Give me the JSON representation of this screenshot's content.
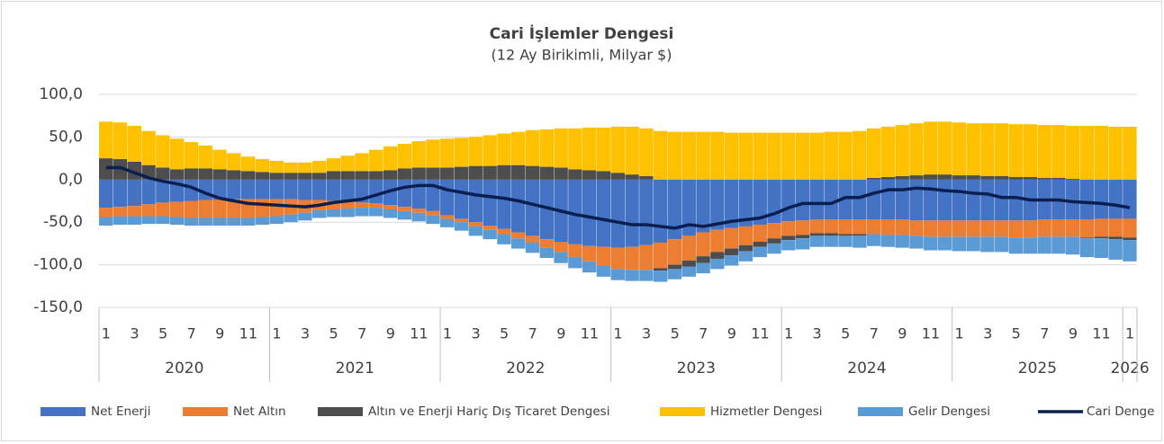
{
  "chart_data": {
    "type": "bar",
    "title": "Cari İşlemler Dengesi",
    "subtitle": "(12 Ay Birikimli, Milyar $)",
    "categories": [
      "1",
      null,
      "3",
      null,
      "5",
      null,
      "7",
      null,
      "9",
      null,
      "11",
      null,
      "1",
      null,
      "3",
      null,
      "5",
      null,
      "7",
      null,
      "9",
      null,
      "11",
      null,
      "1",
      null,
      "3",
      null,
      "5",
      null,
      "7",
      null,
      "9",
      null,
      "11",
      null,
      "1",
      null,
      "3",
      null,
      "5",
      null,
      "7",
      null,
      "9",
      null,
      "11",
      null,
      "1",
      null,
      "3",
      null,
      "5",
      null,
      "7",
      null,
      "9",
      null,
      "11",
      null,
      "1",
      null,
      "3",
      null,
      "5",
      null,
      "7",
      null,
      "9",
      null,
      "11",
      null,
      "1"
    ],
    "years": [
      "2020",
      "2021",
      "2022",
      "2023",
      "2024",
      "2025",
      "2026"
    ],
    "ylim": [
      -150,
      100
    ],
    "yticks": [
      {
        "value": -150,
        "label": "-150,0"
      },
      {
        "value": -100,
        "label": "-100,0"
      },
      {
        "value": -50,
        "label": "-50,0"
      },
      {
        "value": 0,
        "label": "0,0"
      },
      {
        "value": 50,
        "label": "50,0"
      },
      {
        "value": 100,
        "label": "100,0"
      }
    ],
    "grid": true,
    "legend": "bottom",
    "series": [
      {
        "name": "Net Enerji",
        "color": "#4472c4",
        "values": [
          -33,
          -32,
          -31,
          -29,
          -27,
          -26,
          -25,
          -24,
          -24,
          -23,
          -23,
          -23,
          -23,
          -23,
          -24,
          -24,
          -25,
          -26,
          -27,
          -28,
          -30,
          -32,
          -34,
          -37,
          -42,
          -46,
          -50,
          -54,
          -58,
          -62,
          -66,
          -70,
          -73,
          -76,
          -78,
          -79,
          -80,
          -79,
          -77,
          -74,
          -70,
          -66,
          -62,
          -59,
          -57,
          -55,
          -53,
          -51,
          -49,
          -48,
          -47,
          -47,
          -47,
          -47,
          -47,
          -47,
          -47,
          -48,
          -48,
          -48,
          -48,
          -48,
          -48,
          -48,
          -48,
          -48,
          -47,
          -47,
          -47,
          -47,
          -46,
          -46,
          -46
        ]
      },
      {
        "name": "Net Altın",
        "color": "#ed7d31",
        "values": [
          -11,
          -11,
          -12,
          -14,
          -16,
          -18,
          -20,
          -21,
          -21,
          -22,
          -22,
          -21,
          -20,
          -18,
          -15,
          -12,
          -10,
          -8,
          -6,
          -5,
          -5,
          -5,
          -5,
          -5,
          -4,
          -4,
          -5,
          -5,
          -6,
          -7,
          -8,
          -10,
          -12,
          -15,
          -18,
          -22,
          -25,
          -27,
          -29,
          -30,
          -30,
          -29,
          -28,
          -26,
          -24,
          -22,
          -20,
          -18,
          -17,
          -17,
          -16,
          -16,
          -17,
          -17,
          -17,
          -18,
          -18,
          -18,
          -19,
          -19,
          -19,
          -19,
          -19,
          -19,
          -20,
          -20,
          -20,
          -20,
          -20,
          -21,
          -21,
          -21,
          -22
        ]
      },
      {
        "name": "Altın ve Enerji Hariç Dış Ticaret Dengesi",
        "color": "#4d4d4d",
        "values": [
          25,
          24,
          21,
          17,
          14,
          12,
          13,
          13,
          12,
          11,
          10,
          9,
          8,
          8,
          8,
          8,
          10,
          10,
          10,
          10,
          11,
          13,
          14,
          14,
          14,
          15,
          16,
          16,
          17,
          17,
          16,
          15,
          14,
          12,
          11,
          10,
          8,
          6,
          4,
          -3,
          -5,
          -7,
          -8,
          -8,
          -8,
          -7,
          -6,
          -6,
          -5,
          -4,
          -3,
          -3,
          -2,
          -2,
          2,
          3,
          4,
          5,
          6,
          6,
          5,
          5,
          4,
          4,
          3,
          3,
          2,
          2,
          1,
          -1,
          -2,
          -3,
          -3
        ]
      },
      {
        "name": "Hizmetler Dengesi",
        "color": "#ffc000",
        "values": [
          43,
          43,
          42,
          40,
          38,
          36,
          31,
          27,
          23,
          20,
          17,
          15,
          14,
          12,
          12,
          14,
          15,
          18,
          21,
          25,
          28,
          29,
          31,
          33,
          34,
          34,
          34,
          36,
          37,
          39,
          42,
          44,
          46,
          48,
          50,
          51,
          54,
          56,
          56,
          57,
          56,
          56,
          56,
          56,
          55,
          55,
          55,
          55,
          55,
          55,
          55,
          56,
          56,
          57,
          58,
          59,
          60,
          61,
          62,
          62,
          62,
          61,
          62,
          62,
          62,
          62,
          62,
          62,
          62,
          63,
          63,
          62,
          62
        ]
      },
      {
        "name": "Gelir Dengesi",
        "color": "#5b9bd5",
        "values": [
          -10,
          -10,
          -10,
          -9,
          -9,
          -9,
          -9,
          -9,
          -9,
          -9,
          -9,
          -9,
          -9,
          -9,
          -9,
          -9,
          -9,
          -10,
          -10,
          -10,
          -10,
          -10,
          -10,
          -10,
          -10,
          -10,
          -11,
          -11,
          -12,
          -12,
          -12,
          -12,
          -13,
          -13,
          -13,
          -13,
          -13,
          -13,
          -13,
          -13,
          -12,
          -12,
          -12,
          -12,
          -12,
          -12,
          -12,
          -12,
          -12,
          -13,
          -13,
          -13,
          -13,
          -14,
          -14,
          -14,
          -15,
          -15,
          -16,
          -16,
          -17,
          -17,
          -18,
          -18,
          -19,
          -19,
          -20,
          -20,
          -21,
          -22,
          -23,
          -24,
          -25
        ]
      },
      {
        "name": "Cari Denge",
        "color": "#0b1f4f",
        "type": "line",
        "values": [
          14,
          14,
          8,
          2,
          -2,
          -5,
          -9,
          -16,
          -22,
          -25,
          -28,
          -29,
          -30,
          -31,
          -32,
          -30,
          -27,
          -25,
          -23,
          -18,
          -13,
          -9,
          -7,
          -7,
          -12,
          -15,
          -18,
          -20,
          -22,
          -25,
          -29,
          -33,
          -37,
          -41,
          -44,
          -47,
          -50,
          -53,
          -53,
          -55,
          -57,
          -53,
          -55,
          -52,
          -49,
          -47,
          -45,
          -40,
          -33,
          -28,
          -28,
          -28,
          -21,
          -21,
          -16,
          -12,
          -12,
          -10,
          -11,
          -13,
          -14,
          -16,
          -17,
          -21,
          -21,
          -24,
          -24,
          -24,
          -26,
          -27,
          -28,
          -30,
          -33
        ]
      }
    ]
  }
}
